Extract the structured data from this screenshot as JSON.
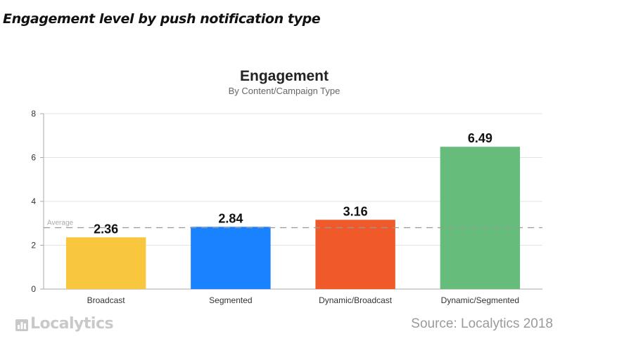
{
  "heading": "Engagement level by push notification type",
  "chart_data": {
    "type": "bar",
    "title": "Engagement",
    "subtitle": "By Content/Campaign Type",
    "categories": [
      "Broadcast",
      "Segmented",
      "Dynamic/Broadcast",
      "Dynamic/Segmented"
    ],
    "values": [
      2.36,
      2.84,
      3.16,
      6.49
    ],
    "value_labels": [
      "2.36",
      "2.84",
      "3.16",
      "6.49"
    ],
    "colors": [
      "#f9c73d",
      "#1a82ff",
      "#f05a2b",
      "#66bd7b"
    ],
    "ylim": [
      0,
      8
    ],
    "yticks": [
      "0",
      "2",
      "4",
      "6",
      "8"
    ],
    "average": {
      "label": "Average",
      "value": 2.8
    },
    "grid": true
  },
  "logo": {
    "text": "Localytics",
    "icon": "bar-chart-icon"
  },
  "source": "Source: Localytics 2018"
}
